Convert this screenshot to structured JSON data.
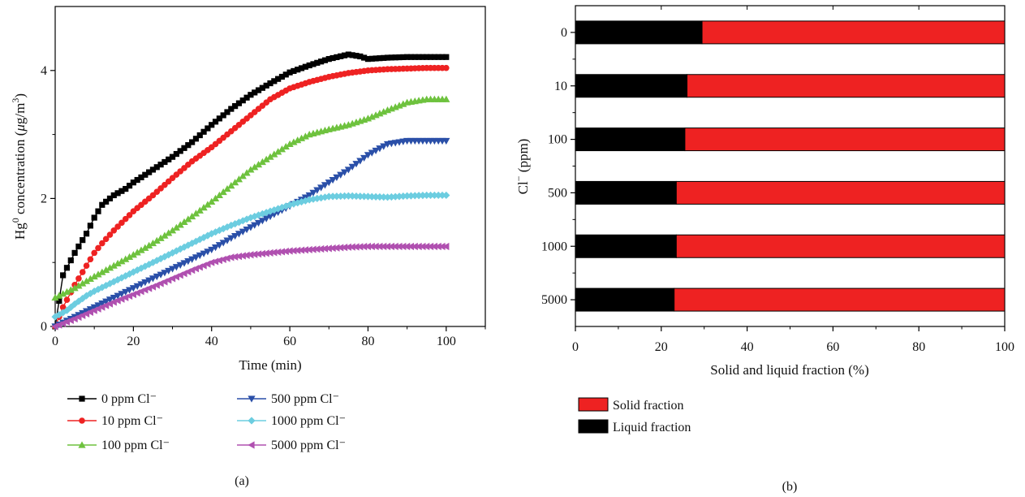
{
  "colors": {
    "c0": "#000000",
    "c10": "#ee2222",
    "c100": "#6ec23e",
    "c500": "#2a4fa8",
    "c1000": "#6ccde0",
    "c5000": "#b050b0",
    "solid": "#ee2222",
    "liquid": "#000000"
  },
  "chart_data": [
    {
      "type": "line",
      "panel_label": "(a)",
      "xlabel": "Time (min)",
      "ylabel": {
        "hg": "Hg",
        "sup0": "0",
        "conc": " concentration (",
        "mu": "μ",
        "g": "g/m",
        "sup3": "3",
        "close": ")"
      },
      "xlim": [
        0,
        110
      ],
      "ylim": [
        0,
        5
      ],
      "xticks": [
        0,
        20,
        40,
        60,
        80,
        100
      ],
      "yticks": [
        0,
        2,
        4
      ],
      "xtick_labels": [
        "0",
        "20",
        "40",
        "60",
        "80",
        "100"
      ],
      "ytick_labels": [
        "0",
        "2",
        "4"
      ],
      "grid": false,
      "legend_position": "below",
      "series": [
        {
          "name": "0 ppm Cl⁻",
          "color_key": "c0",
          "marker": "square",
          "x": [
            0,
            2,
            5,
            8,
            10,
            12,
            15,
            18,
            20,
            25,
            30,
            35,
            40,
            45,
            50,
            55,
            60,
            65,
            70,
            75,
            78,
            80,
            85,
            90,
            95,
            100
          ],
          "y": [
            0,
            0.8,
            1.15,
            1.45,
            1.7,
            1.9,
            2.05,
            2.15,
            2.25,
            2.45,
            2.65,
            2.88,
            3.15,
            3.4,
            3.62,
            3.8,
            3.97,
            4.08,
            4.18,
            4.25,
            4.22,
            4.18,
            4.2,
            4.21,
            4.21,
            4.21
          ]
        },
        {
          "name": "10 ppm Cl⁻",
          "color_key": "c10",
          "marker": "circle",
          "x": [
            0,
            2,
            5,
            8,
            10,
            12,
            15,
            20,
            25,
            30,
            35,
            40,
            45,
            50,
            55,
            60,
            65,
            70,
            75,
            80,
            85,
            90,
            95,
            100
          ],
          "y": [
            0,
            0.3,
            0.65,
            0.95,
            1.15,
            1.3,
            1.5,
            1.8,
            2.05,
            2.32,
            2.58,
            2.8,
            3.05,
            3.3,
            3.55,
            3.72,
            3.82,
            3.9,
            3.96,
            4.0,
            4.02,
            4.03,
            4.04,
            4.04
          ]
        },
        {
          "name": "100 ppm Cl⁻",
          "color_key": "c100",
          "marker": "triangle-up",
          "x": [
            0,
            5,
            10,
            15,
            20,
            25,
            30,
            35,
            40,
            45,
            50,
            55,
            60,
            65,
            70,
            75,
            80,
            85,
            90,
            95,
            100
          ],
          "y": [
            0.45,
            0.6,
            0.78,
            0.95,
            1.12,
            1.3,
            1.5,
            1.72,
            1.95,
            2.2,
            2.45,
            2.65,
            2.85,
            3.0,
            3.08,
            3.15,
            3.25,
            3.38,
            3.5,
            3.55,
            3.55
          ]
        },
        {
          "name": "500 ppm Cl⁻",
          "color_key": "c500",
          "marker": "triangle-down",
          "x": [
            0,
            5,
            10,
            15,
            20,
            25,
            30,
            35,
            40,
            45,
            50,
            55,
            60,
            65,
            70,
            75,
            80,
            85,
            90,
            95,
            100
          ],
          "y": [
            0,
            0.15,
            0.3,
            0.45,
            0.6,
            0.75,
            0.9,
            1.05,
            1.2,
            1.38,
            1.55,
            1.72,
            1.88,
            2.05,
            2.25,
            2.45,
            2.68,
            2.85,
            2.9,
            2.9,
            2.9
          ]
        },
        {
          "name": "1000 ppm Cl⁻",
          "color_key": "c1000",
          "marker": "diamond",
          "x": [
            0,
            3,
            5,
            8,
            10,
            15,
            20,
            25,
            30,
            35,
            40,
            45,
            50,
            55,
            60,
            65,
            70,
            75,
            80,
            85,
            90,
            95,
            100
          ],
          "y": [
            0.15,
            0.25,
            0.35,
            0.48,
            0.55,
            0.7,
            0.85,
            1.0,
            1.15,
            1.3,
            1.45,
            1.58,
            1.7,
            1.8,
            1.9,
            1.98,
            2.03,
            2.04,
            2.03,
            2.02,
            2.04,
            2.05,
            2.05
          ]
        },
        {
          "name": "5000 ppm Cl⁻",
          "color_key": "c5000",
          "marker": "triangle-left",
          "x": [
            0,
            5,
            10,
            15,
            20,
            25,
            30,
            35,
            40,
            45,
            50,
            55,
            60,
            65,
            70,
            75,
            80,
            85,
            90,
            95,
            100
          ],
          "y": [
            0,
            0.12,
            0.25,
            0.38,
            0.5,
            0.62,
            0.75,
            0.88,
            1.0,
            1.08,
            1.12,
            1.15,
            1.18,
            1.2,
            1.22,
            1.24,
            1.25,
            1.25,
            1.25,
            1.25,
            1.25
          ]
        }
      ]
    },
    {
      "type": "bar",
      "orientation": "horizontal",
      "stacked": true,
      "panel_label": "(b)",
      "xlabel": "Solid and liquid fraction (%)",
      "ylabel": {
        "cl": "Cl",
        "sup": "−",
        "unit": " (ppm)"
      },
      "xlim": [
        0,
        100
      ],
      "xticks": [
        0,
        20,
        40,
        60,
        80,
        100
      ],
      "xtick_labels": [
        "0",
        "20",
        "40",
        "60",
        "80",
        "100"
      ],
      "categories": [
        "0",
        "10",
        "100",
        "500",
        "1000",
        "5000"
      ],
      "grid": false,
      "legend_position": "below",
      "series": [
        {
          "name": "Liquid fraction",
          "color_key": "liquid",
          "values": [
            29.5,
            26,
            25.5,
            23.5,
            23.5,
            23
          ]
        },
        {
          "name": "Solid fraction",
          "color_key": "solid",
          "values": [
            70.5,
            74,
            74.5,
            76.5,
            76.5,
            77
          ]
        }
      ],
      "legend_order": [
        "Solid fraction",
        "Liquid fraction"
      ]
    }
  ]
}
